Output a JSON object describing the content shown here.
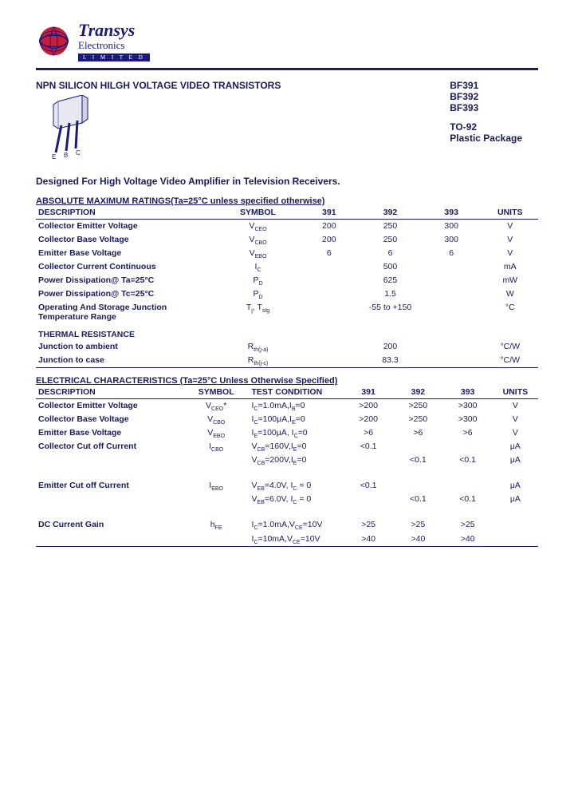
{
  "company": {
    "name": "Transys",
    "sub": "Electronics",
    "limited": "L I M I T E D"
  },
  "title": "NPN SILICON  HILGH VOLTAGE VIDEO TRANSISTORS",
  "parts": [
    "BF391",
    "BF392",
    "BF393"
  ],
  "package": {
    "l1": "TO-92",
    "l2": "Plastic Package"
  },
  "pins": {
    "e": "E",
    "b": "B",
    "c": "C"
  },
  "designed": "Designed For High Voltage Video Amplifier in Television Receivers.",
  "amr": {
    "title": "ABSOLUTE MAXIMUM RATINGS(Ta=25°C unless specified otherwise)",
    "headers": [
      "DESCRIPTION",
      "SYMBOL",
      "391",
      "392",
      "393",
      "UNITS"
    ],
    "rows": [
      {
        "d": "Collector Emitter Voltage",
        "s": "V<sub>CEO</sub>",
        "v": [
          "200",
          "250",
          "300"
        ],
        "u": "V"
      },
      {
        "d": "Collector Base Voltage",
        "s": "V<sub>CBO</sub>",
        "v": [
          "200",
          "250",
          "300"
        ],
        "u": "V"
      },
      {
        "d": "Emitter Base Voltage",
        "s": "V<sub>EBO</sub>",
        "v": [
          "6",
          "6",
          "6"
        ],
        "u": "V"
      },
      {
        "d": "Collector Current Continuous",
        "s": "I<sub>C</sub>",
        "v": [
          "",
          "500",
          ""
        ],
        "u": "mA"
      },
      {
        "d": "Power Dissipation@ Ta=25°C",
        "s": "P<sub>D</sub>",
        "v": [
          "",
          "625",
          ""
        ],
        "u": "mW"
      },
      {
        "d": "Power Dissipation@ Tc=25°C",
        "s": "P<sub>D</sub>",
        "v": [
          "",
          "1.5",
          ""
        ],
        "u": "W"
      },
      {
        "d": "Operating And Storage Junction Temperature Range",
        "s": "T<sub>j</sub>, T<sub>stg</sub>",
        "v": [
          "",
          "-55 to +150",
          ""
        ],
        "u": "°C"
      }
    ],
    "thermal": {
      "hdr": "THERMAL RESISTANCE",
      "rows": [
        {
          "d": "Junction to ambient",
          "s": "R<sub>th(j-a)</sub>",
          "v": [
            "",
            "200",
            ""
          ],
          "u": "°C/W"
        },
        {
          "d": "Junction to case",
          "s": "R<sub>th(j-c)</sub>",
          "v": [
            "",
            "83.3",
            ""
          ],
          "u": "°C/W"
        }
      ]
    }
  },
  "elec": {
    "title": "ELECTRICAL CHARACTERISTICS (Ta=25°C Unless Otherwise Specified)",
    "headers": [
      "DESCRIPTION",
      "SYMBOL",
      "TEST CONDITION",
      "391",
      "392",
      "393",
      "UNITS"
    ],
    "rows": [
      {
        "d": "Collector Emitter Voltage",
        "s": "V<sub>CEO</sub>*",
        "c": "I<sub>C</sub>=1.0mA,I<sub>B</sub>=0",
        "v": [
          ">200",
          ">250",
          ">300"
        ],
        "u": "V"
      },
      {
        "d": "Collector Base Voltage",
        "s": "V<sub>CBO</sub>",
        "c": "I<sub>C</sub>=100μA,I<sub>E</sub>=0",
        "v": [
          ">200",
          ">250",
          ">300"
        ],
        "u": "V"
      },
      {
        "d": "Emitter Base Voltage",
        "s": "V<sub>EBO</sub>",
        "c": "I<sub>E</sub>=100μA, I<sub>C</sub>=0",
        "v": [
          ">6",
          ">6",
          ">6"
        ],
        "u": "V"
      },
      {
        "d": "Collector Cut off Current",
        "s": "I<sub>CBO</sub>",
        "c": "V<sub>CB</sub>=160V,I<sub>E</sub>=0",
        "v": [
          "<0.1",
          "",
          ""
        ],
        "u": "μA"
      },
      {
        "d": "",
        "s": "",
        "c": "V<sub>CB</sub>=200V,I<sub>E</sub>=0",
        "v": [
          "",
          "<0.1",
          "<0.1"
        ],
        "u": "μA"
      },
      {
        "blank": true
      },
      {
        "d": "Emitter Cut off Current",
        "s": "I<sub>EBO</sub>",
        "c": "V<sub>EB</sub>=4.0V, I<sub>C</sub> = 0",
        "v": [
          "<0.1",
          "",
          ""
        ],
        "u": "μA"
      },
      {
        "d": "",
        "s": "",
        "c": "V<sub>EB</sub>=6.0V, I<sub>C</sub> = 0",
        "v": [
          "",
          "<0.1",
          "<0.1"
        ],
        "u": "μA"
      },
      {
        "blank": true
      },
      {
        "d": "DC Current Gain",
        "s": "h<sub>FE</sub>",
        "c": "I<sub>C</sub>=1.0mA,V<sub>CE</sub>=10V",
        "v": [
          ">25",
          ">25",
          ">25"
        ],
        "u": ""
      },
      {
        "d": "",
        "s": "",
        "c": "I<sub>C</sub>=10mA,V<sub>CE</sub>=10V",
        "v": [
          ">40",
          ">40",
          ">40"
        ],
        "u": ""
      }
    ]
  },
  "colors": {
    "text": "#1a1a5e",
    "globe": "#c41e3a"
  }
}
